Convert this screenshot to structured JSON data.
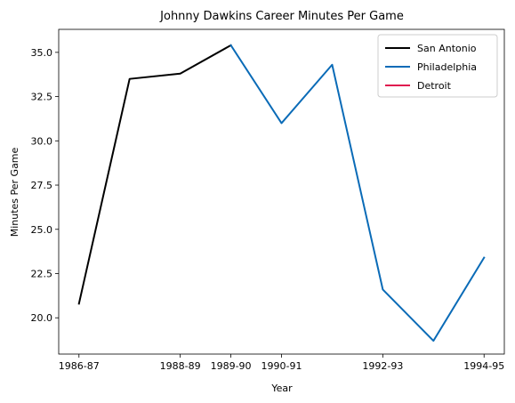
{
  "chart_data": {
    "type": "line",
    "title": "Johnny Dawkins Career Minutes Per Game",
    "xlabel": "Year",
    "ylabel": "Minutes Per Game",
    "x_ticks": [
      "1986-87",
      "1988-89",
      "1989-90",
      "1990-91",
      "1992-93",
      "1994-95"
    ],
    "y_ticks": [
      "20.0",
      "22.5",
      "25.0",
      "27.5",
      "30.0",
      "32.5",
      "35.0"
    ],
    "ylim": [
      17.95,
      36.3
    ],
    "legend_position": "top-right",
    "grid": false,
    "series": [
      {
        "name": "San Antonio",
        "color": "#000000",
        "points": [
          {
            "season": "1986-87",
            "value": 20.8
          },
          {
            "season": "1987-88",
            "value": 33.5
          },
          {
            "season": "1988-89",
            "value": 33.8
          },
          {
            "season": "1989-90",
            "value": 35.4
          }
        ]
      },
      {
        "name": "Philadelphia",
        "color": "#0a6bb7",
        "points": [
          {
            "season": "1989-90",
            "value": 35.4
          },
          {
            "season": "1990-91",
            "value": 31.0
          },
          {
            "season": "1991-92",
            "value": 34.3
          },
          {
            "season": "1992-93",
            "value": 21.6
          },
          {
            "season": "1993-94",
            "value": 18.7
          },
          {
            "season": "1994-95",
            "value": 23.4
          }
        ]
      },
      {
        "name": "Detroit",
        "color": "#e0194f",
        "points": []
      }
    ]
  }
}
